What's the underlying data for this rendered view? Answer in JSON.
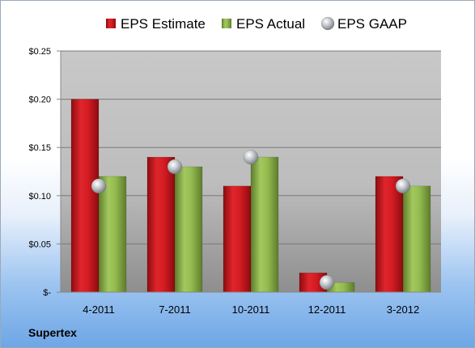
{
  "company": "Supertex",
  "chart_data": {
    "type": "bar",
    "categories": [
      "4-2011",
      "7-2011",
      "10-2011",
      "12-2011",
      "3-2012"
    ],
    "series": [
      {
        "name": "EPS Estimate",
        "kind": "bar",
        "color": "#c0181e",
        "values": [
          0.2,
          0.14,
          0.11,
          0.02,
          0.12
        ]
      },
      {
        "name": "EPS Actual",
        "kind": "bar",
        "color": "#8ab04a",
        "values": [
          0.12,
          0.13,
          0.14,
          0.01,
          0.11
        ]
      },
      {
        "name": "EPS GAAP",
        "kind": "marker",
        "color": "#b8bcc2",
        "values": [
          0.11,
          0.13,
          0.14,
          0.01,
          0.11
        ]
      }
    ],
    "yticks": [
      {
        "value": 0.25,
        "label": "$0.25"
      },
      {
        "value": 0.2,
        "label": "$0.20"
      },
      {
        "value": 0.15,
        "label": "$0.15"
      },
      {
        "value": 0.1,
        "label": "$0.10"
      },
      {
        "value": 0.05,
        "label": "$0.05"
      },
      {
        "value": 0,
        "label": "$-"
      }
    ],
    "ylim": [
      0,
      0.25
    ],
    "grid": true,
    "legend": "top"
  }
}
